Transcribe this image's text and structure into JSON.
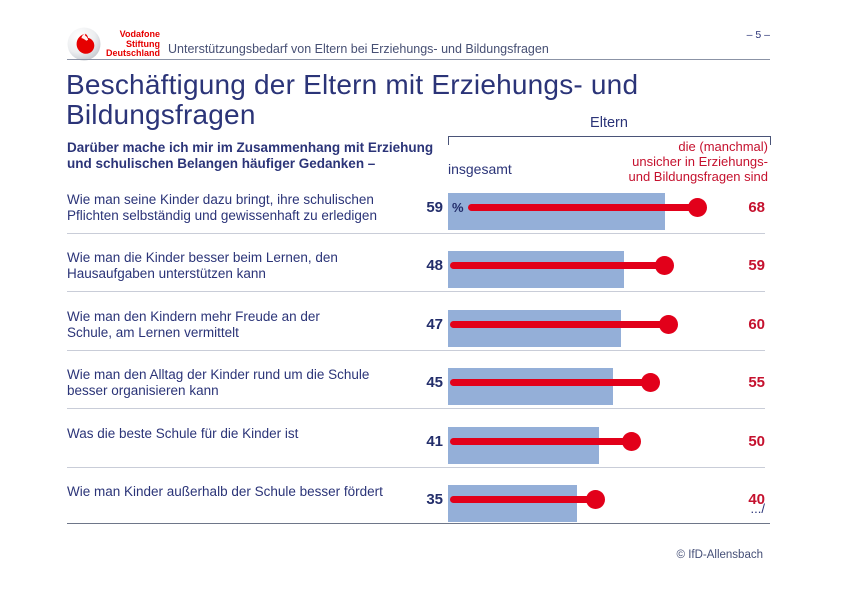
{
  "header": {
    "wordmark_lines": [
      "Vodafone",
      "Stiftung",
      "Deutschland"
    ],
    "subtitle": "Unterstützungsbedarf von Eltern bei Erziehungs- und Bildungsfragen",
    "page_number": "– 5 –"
  },
  "title_lines": [
    "Beschäftigung der Eltern mit Erziehungs- und",
    "Bildungsfragen"
  ],
  "intro_lines": [
    "Darüber mache ich mir im Zusammenhang mit Erziehung",
    "und schulischen Belangen häufiger Gedanken –"
  ],
  "chart_data": {
    "type": "bar",
    "title": "Beschäftigung der Eltern mit Erziehungs- und Bildungsfragen",
    "unit": "%",
    "group_label": "Eltern",
    "legend_position": "top",
    "xlim": [
      0,
      87
    ],
    "categories": [
      [
        "Wie man seine Kinder dazu bringt, ihre schulischen",
        "Pflichten selbständig und gewissenhaft zu erledigen"
      ],
      [
        "Wie man die Kinder besser beim Lernen, den",
        "Hausaufgaben unterstützen kann"
      ],
      [
        "Wie man den Kindern mehr Freude an der",
        "Schule, am Lernen vermittelt"
      ],
      [
        "Wie man den Alltag der Kinder rund um die Schule",
        "besser organisieren kann"
      ],
      [
        "Was die beste Schule für die Kinder ist"
      ],
      [
        "Wie man Kinder außerhalb der Schule besser fördert"
      ]
    ],
    "series": [
      {
        "name": "insgesamt",
        "style": "bar",
        "color": "#94AFD8",
        "values": [
          59,
          48,
          47,
          45,
          41,
          35
        ]
      },
      {
        "name": "die (manchmal) unsicher in Erziehungs- und Bildungsfragen sind",
        "label_lines": [
          "die (manchmal)",
          "unsicher in Erziehungs-",
          "und Bildungsfragen sind"
        ],
        "style": "lollipop",
        "color": "#E2001A",
        "values": [
          68,
          59,
          60,
          55,
          50,
          40
        ]
      }
    ]
  },
  "footer": {
    "continuation": ".../",
    "credit": "© IfD-Allensbach"
  },
  "colors": {
    "navy_text": "#2B3478",
    "value_navy": "#232E6B",
    "red_text": "#C5112E",
    "lollipop_red": "#E2001A",
    "bar_blue": "#94AFD8",
    "vodafone_red": "#E60000",
    "separator": "#C9CDD8",
    "rule": "#8B93A6"
  }
}
